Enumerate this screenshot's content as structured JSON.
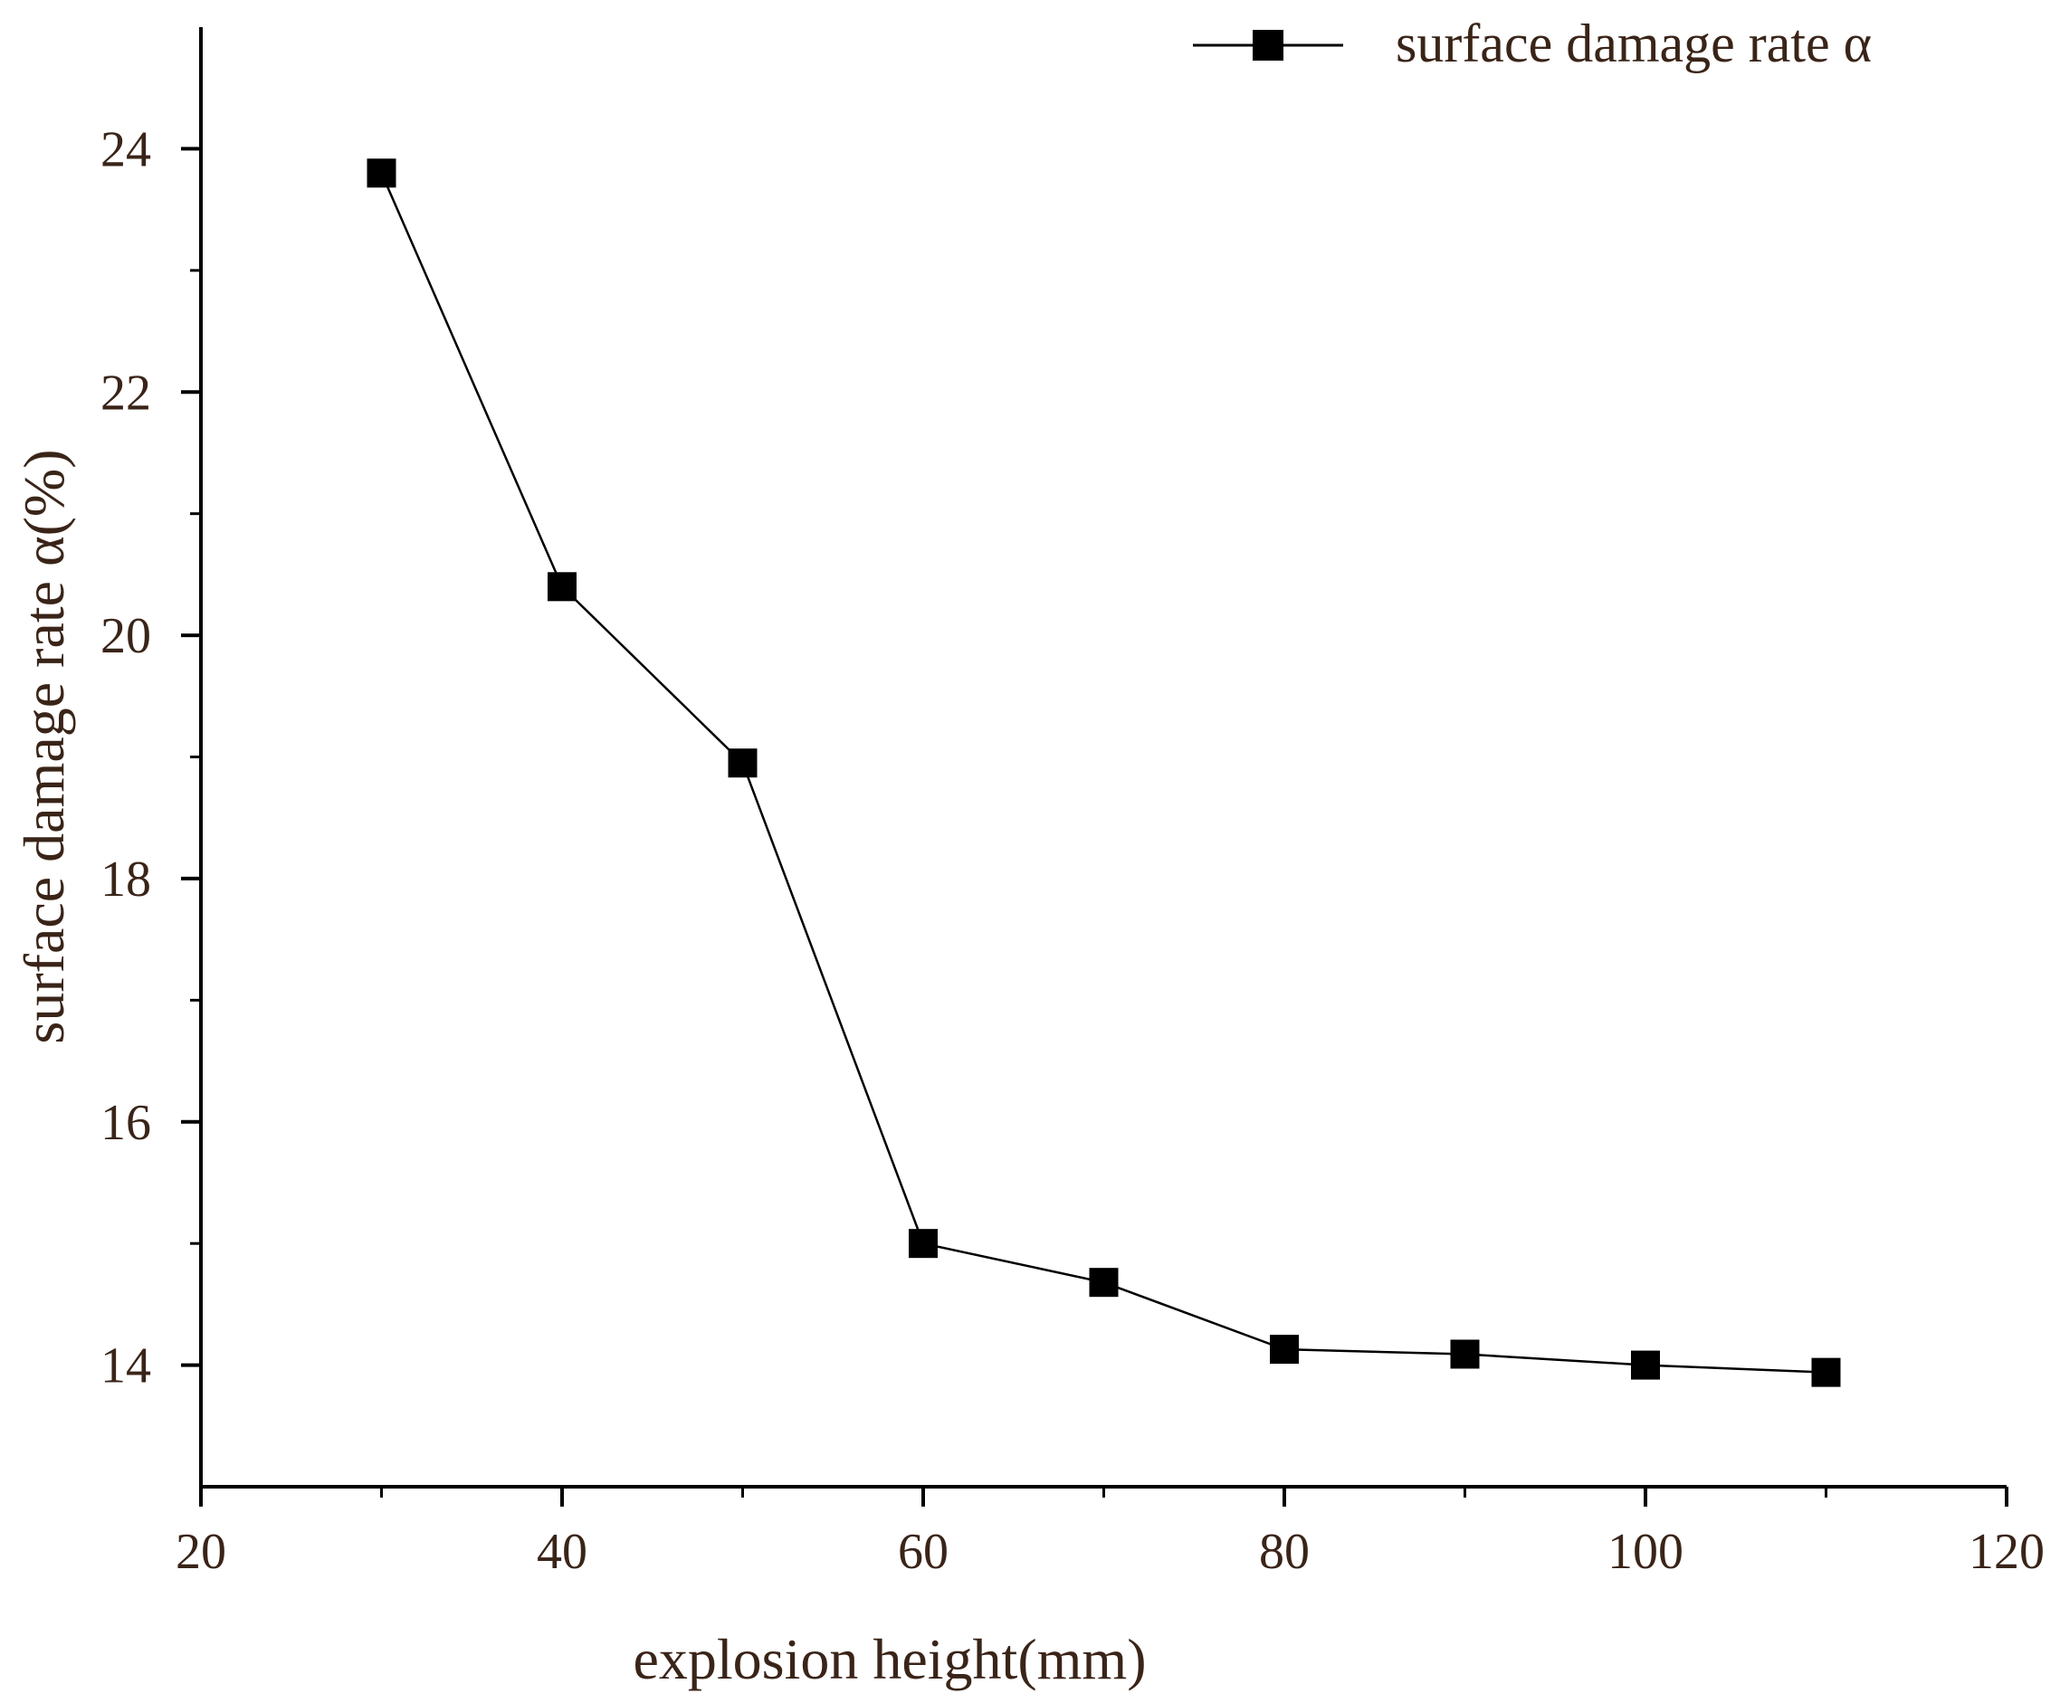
{
  "chart_data": {
    "type": "line",
    "title": "",
    "xlabel": "explosion height(mm)",
    "ylabel": "surface damage rate α(%)",
    "xlim": [
      20,
      120
    ],
    "ylim": [
      13,
      25
    ],
    "x_major_ticks": [
      20,
      40,
      60,
      80,
      100,
      120
    ],
    "x_minor_ticks": [
      30,
      50,
      70,
      90,
      110
    ],
    "y_major_ticks": [
      14,
      16,
      18,
      20,
      22,
      24
    ],
    "y_minor_ticks": [
      15,
      17,
      19,
      21,
      23
    ],
    "grid": false,
    "legend_position": "top-right",
    "series": [
      {
        "name": "surface damage rate α",
        "marker": "square",
        "color": "#000000",
        "x": [
          30,
          40,
          50,
          60,
          70,
          80,
          90,
          100,
          110
        ],
        "values": [
          23.8,
          20.4,
          18.95,
          15.0,
          14.68,
          14.13,
          14.09,
          14.0,
          13.94
        ]
      }
    ]
  }
}
